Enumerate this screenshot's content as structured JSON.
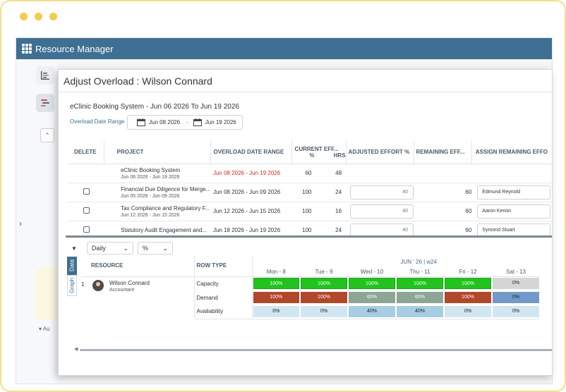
{
  "app": {
    "title": "Resource Manager"
  },
  "dialog": {
    "title": "Adjust Overload : Wilson Connard",
    "project_summary": "eClinic Booking System - Jun 06 2026 To Jun 19 2026",
    "date_range_label": "Overload Date Range",
    "date_from": "Jun 08 2026",
    "date_sep": "-",
    "date_to": "Jun 19 2026"
  },
  "overload_table": {
    "headers": {
      "delete": "DELETE",
      "project": "PROJECT",
      "overload_date_range": "OVERLOAD DATE RANGE",
      "current_effort": "CURRENT EFF...",
      "current_pct": "%",
      "current_hrs": "HRS",
      "adjusted_effort": "ADJUSTED EFFORT %",
      "remaining_effort": "REMAINING EFF...",
      "assign_remaining": "ASSIGN REMAINING EFFO"
    },
    "rows": [
      {
        "name": "eClinic Booking System",
        "dates": "Jun 06 2026 - Jun 19 2026",
        "overload": "Jun 08 2026 - Jun 19 2026",
        "pct": "60",
        "hrs": "48"
      },
      {
        "name": "Financial Due Diligence for Merge...",
        "dates": "Jun 05 2026 - Jun 09 2026",
        "overload": "Jun 08 2026 - Jun 09 2026",
        "pct": "100",
        "hrs": "24",
        "adjusted": "40",
        "remaining": "60",
        "assignee": "Edmund Reynold"
      },
      {
        "name": "Tax Compliance and Regulatory F...",
        "dates": "Jun 12 2026 - Jun 15 2026",
        "overload": "Jun 12 2026 - Jun 15 2026",
        "pct": "100",
        "hrs": "16",
        "adjusted": "40",
        "remaining": "60",
        "assignee": "Aaron Kenon"
      },
      {
        "name": "Statutory Audit Engagement and...",
        "dates": "",
        "overload": "Jun 18 2026 - Jun 19 2026",
        "pct": "100",
        "hrs": "24",
        "adjusted": "40",
        "remaining": "60",
        "assignee": "Symond Stuart"
      }
    ]
  },
  "bottom_panel": {
    "view_select": "Daily",
    "unit_select": "%",
    "tabs": {
      "data": "Data",
      "graph": "Graph"
    },
    "headers": {
      "resource": "RESOURCE",
      "row_type": "ROW TYPE",
      "week": "JUN ' 26 | w24"
    },
    "days": [
      "Mon - 8",
      "Tue - 9",
      "Wed - 10",
      "Thu - 11",
      "Fri - 12",
      "Sat - 13"
    ],
    "resource": {
      "index": "1",
      "name": "Wilson Connard",
      "role": "Accountant"
    },
    "row_types": [
      "Capacity",
      "Demand",
      "Availability"
    ],
    "capacity": [
      "100%",
      "100%",
      "100%",
      "100%",
      "100%",
      "0%"
    ],
    "demand": [
      "100%",
      "100%",
      "60%",
      "60%",
      "100%",
      "0%"
    ],
    "availability": [
      "0%",
      "0%",
      "40%",
      "40%",
      "0%",
      "0%"
    ]
  },
  "sidebar": {
    "collapsed_label": "Au"
  }
}
